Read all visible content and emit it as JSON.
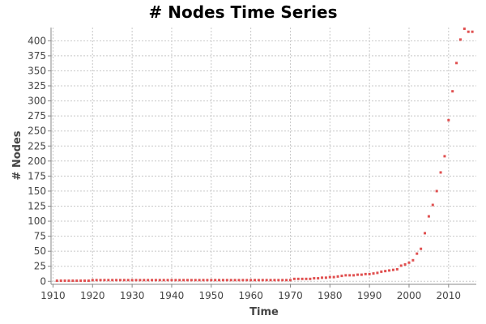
{
  "chart_data": {
    "type": "scatter",
    "title": "# Nodes Time Series",
    "xlabel": "Time",
    "ylabel": "# Nodes",
    "xlim": [
      1909.5,
      2017.0
    ],
    "ylim": [
      -5,
      422
    ],
    "xticks": [
      1910,
      1920,
      1930,
      1940,
      1950,
      1960,
      1970,
      1980,
      1990,
      2000,
      2010
    ],
    "yticks": [
      0,
      25,
      50,
      75,
      100,
      125,
      150,
      175,
      200,
      225,
      250,
      275,
      300,
      325,
      350,
      375,
      400
    ],
    "grid": true,
    "legend": "none",
    "series": [
      {
        "color": "#e05050",
        "points": [
          [
            1911,
            1
          ],
          [
            1912,
            1
          ],
          [
            1913,
            1
          ],
          [
            1914,
            1
          ],
          [
            1915,
            1
          ],
          [
            1916,
            1
          ],
          [
            1917,
            1
          ],
          [
            1918,
            1
          ],
          [
            1919,
            1
          ],
          [
            1920,
            2
          ],
          [
            1921,
            2
          ],
          [
            1922,
            2
          ],
          [
            1923,
            2
          ],
          [
            1924,
            2
          ],
          [
            1925,
            2
          ],
          [
            1926,
            2
          ],
          [
            1927,
            2
          ],
          [
            1928,
            2
          ],
          [
            1929,
            2
          ],
          [
            1930,
            2
          ],
          [
            1931,
            2
          ],
          [
            1932,
            2
          ],
          [
            1933,
            2
          ],
          [
            1934,
            2
          ],
          [
            1935,
            2
          ],
          [
            1936,
            2
          ],
          [
            1937,
            2
          ],
          [
            1938,
            2
          ],
          [
            1939,
            2
          ],
          [
            1940,
            2
          ],
          [
            1941,
            2
          ],
          [
            1942,
            2
          ],
          [
            1943,
            2
          ],
          [
            1944,
            2
          ],
          [
            1945,
            2
          ],
          [
            1946,
            2
          ],
          [
            1947,
            2
          ],
          [
            1948,
            2
          ],
          [
            1949,
            2
          ],
          [
            1950,
            2
          ],
          [
            1951,
            2
          ],
          [
            1952,
            2
          ],
          [
            1953,
            2
          ],
          [
            1954,
            2
          ],
          [
            1955,
            2
          ],
          [
            1956,
            2
          ],
          [
            1957,
            2
          ],
          [
            1958,
            2
          ],
          [
            1959,
            2
          ],
          [
            1960,
            2
          ],
          [
            1961,
            2
          ],
          [
            1962,
            2
          ],
          [
            1963,
            2
          ],
          [
            1964,
            2
          ],
          [
            1965,
            2
          ],
          [
            1966,
            2
          ],
          [
            1967,
            2
          ],
          [
            1968,
            2
          ],
          [
            1969,
            2
          ],
          [
            1970,
            2
          ],
          [
            1971,
            4
          ],
          [
            1972,
            4
          ],
          [
            1973,
            4
          ],
          [
            1974,
            4
          ],
          [
            1975,
            4
          ],
          [
            1976,
            5
          ],
          [
            1977,
            5
          ],
          [
            1978,
            6
          ],
          [
            1979,
            6
          ],
          [
            1980,
            7
          ],
          [
            1981,
            7
          ],
          [
            1982,
            8
          ],
          [
            1983,
            9
          ],
          [
            1984,
            10
          ],
          [
            1985,
            10
          ],
          [
            1986,
            10
          ],
          [
            1987,
            11
          ],
          [
            1988,
            11
          ],
          [
            1989,
            12
          ],
          [
            1990,
            12
          ],
          [
            1991,
            13
          ],
          [
            1992,
            14
          ],
          [
            1993,
            16
          ],
          [
            1994,
            17
          ],
          [
            1995,
            18
          ],
          [
            1996,
            19
          ],
          [
            1997,
            20
          ],
          [
            1998,
            26
          ],
          [
            1999,
            28
          ],
          [
            2000,
            31
          ],
          [
            2001,
            35
          ],
          [
            2002,
            46
          ],
          [
            2003,
            54
          ],
          [
            2004,
            80
          ],
          [
            2005,
            108
          ],
          [
            2006,
            127
          ],
          [
            2007,
            150
          ],
          [
            2008,
            181
          ],
          [
            2009,
            208
          ],
          [
            2010,
            268
          ],
          [
            2011,
            316
          ],
          [
            2012,
            363
          ],
          [
            2013,
            402
          ],
          [
            2014,
            420
          ],
          [
            2015,
            415
          ],
          [
            2016,
            415
          ]
        ]
      }
    ]
  }
}
